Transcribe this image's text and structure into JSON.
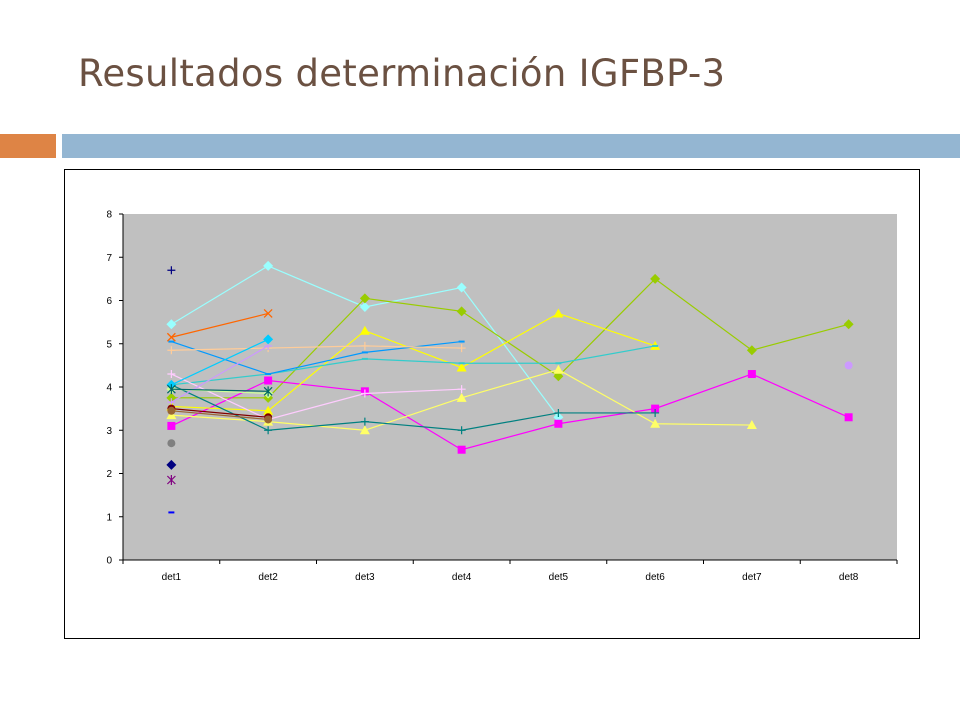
{
  "slide": {
    "title": "Resultados determinación IGFBP-3"
  },
  "colors": {
    "accent_bar": "#de8445",
    "header_bar": "#94b6d2",
    "plot_bg": "#c0c0c0",
    "title": "#6b5142"
  },
  "chart_data": {
    "type": "line",
    "title": "",
    "xlabel": "",
    "ylabel": "",
    "categories": [
      "det1",
      "det2",
      "det3",
      "det4",
      "det5",
      "det6",
      "det7",
      "det8"
    ],
    "ylim": [
      0,
      8
    ],
    "yticks": [
      0,
      1,
      2,
      3,
      4,
      5,
      6,
      7,
      8
    ],
    "grid": false,
    "legend": "none",
    "series": [
      {
        "color": "#ffffcc",
        "marker": "diamond",
        "values": [
          null,
          null,
          null,
          null,
          null,
          null,
          null,
          null
        ]
      },
      {
        "color": "#99ffff",
        "marker": "diamond",
        "values": [
          5.45,
          6.8,
          5.85,
          6.3,
          3.3,
          null,
          null,
          null
        ]
      },
      {
        "color": "#99cc00",
        "marker": "diamond",
        "values": [
          3.75,
          3.75,
          6.05,
          5.75,
          4.25,
          6.5,
          4.85,
          5.45
        ]
      },
      {
        "color": "#ff00ff",
        "marker": "square",
        "values": [
          3.1,
          4.15,
          3.9,
          2.55,
          3.15,
          3.5,
          4.3,
          3.3
        ]
      },
      {
        "color": "#ffff66",
        "marker": "triangle",
        "values": [
          3.35,
          3.2,
          3.0,
          3.75,
          4.4,
          3.15,
          3.12,
          null
        ]
      },
      {
        "color": "#ffff00",
        "marker": "triangle",
        "values": [
          3.55,
          3.45,
          5.3,
          4.45,
          5.7,
          4.95,
          null,
          null
        ]
      },
      {
        "color": "#33cccc",
        "marker": "dash",
        "values": [
          4.05,
          4.3,
          4.65,
          4.55,
          4.55,
          4.95,
          null,
          null
        ]
      },
      {
        "color": "#0099ff",
        "marker": "dash",
        "values": [
          5.05,
          4.3,
          4.8,
          5.05,
          null,
          null,
          null,
          null
        ]
      },
      {
        "color": "#008080",
        "marker": "plus",
        "values": [
          4.05,
          3.0,
          3.2,
          3.0,
          3.4,
          3.4,
          null,
          null
        ]
      },
      {
        "color": "#ff6600",
        "marker": "x",
        "values": [
          5.15,
          5.7,
          null,
          null,
          null,
          null,
          null,
          null
        ]
      },
      {
        "color": "#ffcc99",
        "marker": "plus",
        "values": [
          4.85,
          4.9,
          4.95,
          4.9,
          null,
          null,
          null,
          null
        ]
      },
      {
        "color": "#ffccff",
        "marker": "plus",
        "values": [
          4.3,
          3.25,
          3.85,
          3.95,
          null,
          null,
          null,
          null
        ]
      },
      {
        "color": "#cc99ff",
        "marker": "plus",
        "values": [
          3.65,
          4.95,
          null,
          null,
          null,
          null,
          null,
          null
        ]
      },
      {
        "color": "#ccff99",
        "marker": "diamond",
        "values": [
          3.95,
          3.85,
          null,
          null,
          null,
          null,
          null,
          null
        ]
      },
      {
        "color": "#00ccff",
        "marker": "diamond",
        "values": [
          4.05,
          5.1,
          null,
          null,
          null,
          null,
          null,
          null
        ]
      },
      {
        "color": "#006666",
        "marker": "asterisk",
        "values": [
          3.95,
          3.9,
          null,
          null,
          null,
          null,
          null,
          null
        ]
      },
      {
        "color": "#800000",
        "marker": "circle",
        "values": [
          3.5,
          3.3,
          null,
          null,
          null,
          null,
          null,
          null
        ]
      },
      {
        "color": "#996633",
        "marker": "circle",
        "values": [
          3.45,
          3.25,
          null,
          null,
          null,
          null,
          null,
          null
        ]
      },
      {
        "color": "#000080",
        "marker": "plus",
        "values": [
          6.7,
          null,
          null,
          null,
          null,
          null,
          null,
          null
        ]
      },
      {
        "color": "#808080",
        "marker": "circle",
        "values": [
          2.7,
          null,
          null,
          null,
          null,
          null,
          null,
          null
        ]
      },
      {
        "color": "#000080",
        "marker": "diamond",
        "values": [
          2.2,
          null,
          null,
          null,
          null,
          null,
          null,
          null
        ]
      },
      {
        "color": "#800080",
        "marker": "asterisk",
        "values": [
          1.85,
          null,
          null,
          null,
          null,
          null,
          null,
          null
        ]
      },
      {
        "color": "#0000ff",
        "marker": "dash",
        "values": [
          1.1,
          null,
          null,
          null,
          null,
          null,
          null,
          null
        ]
      },
      {
        "color": "#cc99ff",
        "marker": "circle",
        "values": [
          null,
          null,
          null,
          null,
          null,
          null,
          null,
          4.5
        ]
      }
    ]
  }
}
